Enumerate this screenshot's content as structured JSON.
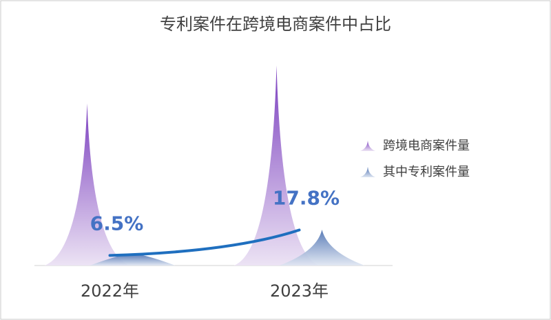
{
  "chart_data": {
    "type": "spike",
    "title": "专利案件在跨境电商案件中占比",
    "categories": [
      "2022年",
      "2023年"
    ],
    "ylim": [
      0,
      300
    ],
    "y2lim": [
      2,
      94
    ],
    "series": [
      {
        "name": "跨境电商案件量",
        "color": "#7b3fbf",
        "values": [
          235,
          290
        ]
      },
      {
        "name": "其中专利案件量",
        "color": "#4a6fb0",
        "values": [
          15,
          52
        ]
      },
      {
        "type": "line",
        "axis": "y2",
        "color": "#1f6fbf",
        "values": [
          6.5,
          17.8
        ],
        "value_labels": [
          "6.5%",
          "17.8%"
        ]
      }
    ]
  }
}
